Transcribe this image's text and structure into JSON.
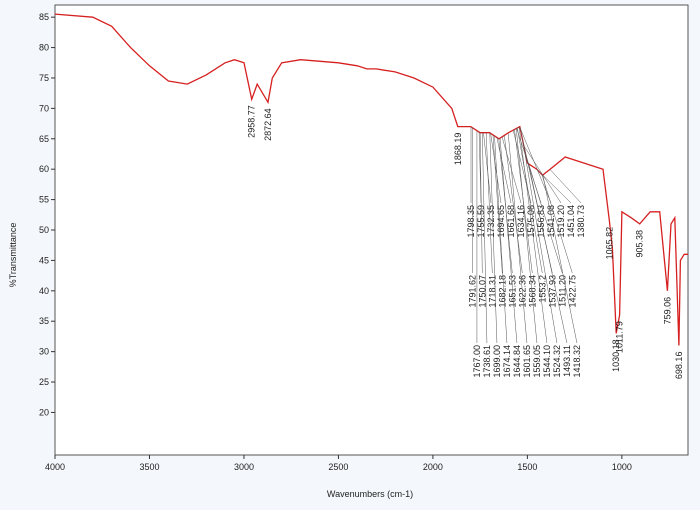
{
  "chart_data": {
    "type": "line",
    "x_label": "Wavenumbers (cm-1)",
    "y_label": "%Transmittance",
    "x": [
      4000,
      3800,
      3700,
      3600,
      3500,
      3400,
      3300,
      3200,
      3100,
      3050,
      3000,
      2958.77,
      2930,
      2872.64,
      2850,
      2800,
      2700,
      2500,
      2400,
      2350,
      2300,
      2200,
      2100,
      2000,
      1900,
      1868.19,
      1800,
      1750,
      1700,
      1650,
      1600,
      1540,
      1500,
      1450,
      1420,
      1380,
      1300,
      1200,
      1100,
      1065.82,
      1050,
      1030.18,
      1011.79,
      1000,
      950,
      905.38,
      850,
      800,
      759.06,
      740,
      720,
      698.16,
      690,
      670,
      650
    ],
    "series": [
      {
        "name": "Spectrum",
        "color": "#d62020",
        "values": [
          85.5,
          85,
          83.5,
          80,
          77,
          74.5,
          74,
          75.5,
          77.5,
          78,
          77.5,
          71.5,
          74,
          71,
          75,
          77.5,
          78,
          77.5,
          77,
          76.5,
          76.5,
          76,
          75,
          73.5,
          70,
          67,
          67,
          66,
          66,
          65,
          66,
          67,
          61,
          60,
          59,
          60,
          62,
          61,
          60,
          51.5,
          47,
          33,
          36,
          53,
          52,
          51,
          53,
          53,
          40,
          51,
          52,
          31,
          45,
          46,
          46
        ]
      }
    ],
    "peaks": [
      2958.77,
      2872.64,
      1868.19,
      1798.35,
      1791.62,
      {
        "value": 1767,
        "label": "1767.00"
      },
      1755.59,
      1750.07,
      1738.61,
      1732.35,
      1718.31,
      {
        "value": 1699,
        "label": "1699.00"
      },
      1694.65,
      1682.18,
      1674.14,
      1661.68,
      1651.53,
      1644.84,
      1634.16,
      1622.36,
      1601.65,
      1575.06,
      1568.34,
      1559.05,
      1556.83,
      1553.2,
      {
        "value": 1544.1,
        "label": "1544.10"
      },
      1541.08,
      1537.93,
      1524.32,
      {
        "value": 1519.2,
        "label": "1519.20"
      },
      {
        "value": 1511.2,
        "label": "1511.20"
      },
      1493.11,
      1451.04,
      1422.75,
      1418.32,
      1380.73,
      1065.82,
      1030.18,
      1011.79,
      905.38,
      759.06,
      698.16
    ],
    "xlim": [
      4000,
      650
    ],
    "xticks": [
      4000,
      3500,
      3000,
      2500,
      2000,
      1500,
      1000
    ],
    "ylim": [
      13,
      87
    ],
    "yticks": [
      20,
      25,
      30,
      35,
      40,
      45,
      50,
      55,
      60,
      65,
      70,
      75,
      80,
      85
    ],
    "grid": false
  }
}
